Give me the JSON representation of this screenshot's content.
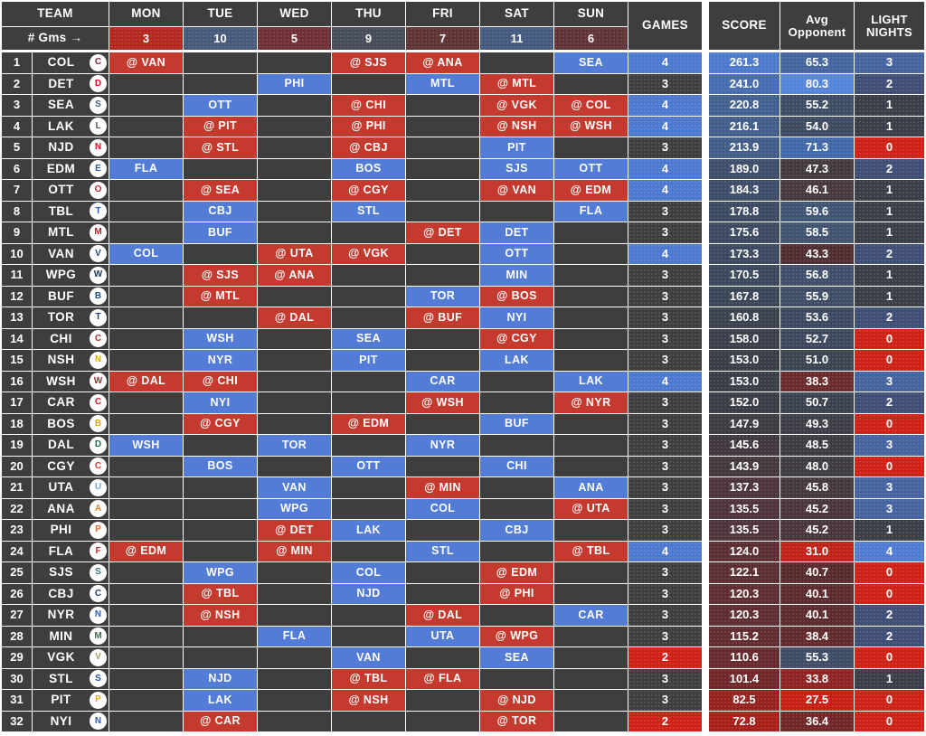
{
  "palette": {
    "empty": "#3E3E3E",
    "home": "#527CD5",
    "away": "#C43A2E",
    "games_colors": {
      "2": "#CE2217",
      "3": "#3E3E3E",
      "4": "#4C79CF"
    },
    "light_colors": {
      "0": "#CE2217",
      "1": "#3B3E46",
      "2": "#3F4E74",
      "3": "#45639E",
      "4": "#4F7CD2"
    }
  },
  "day_keys": [
    "mon",
    "tue",
    "wed",
    "thu",
    "fri",
    "sat",
    "sun"
  ],
  "header": {
    "team": "TEAM",
    "gms_label": "# Gms →",
    "days": [
      "MON",
      "TUE",
      "WED",
      "THU",
      "FRI",
      "SAT",
      "SUN"
    ],
    "counts": {
      "mon": {
        "label": "3",
        "color": "#B3271E"
      },
      "tue": {
        "label": "10",
        "color": "#47597B"
      },
      "wed": {
        "label": "5",
        "color": "#6E3036"
      },
      "thu": {
        "label": "9",
        "color": "#474C59"
      },
      "fri": {
        "label": "7",
        "color": "#5E3434"
      },
      "sat": {
        "label": "11",
        "color": "#44597E"
      },
      "sun": {
        "label": "6",
        "color": "#63333A"
      }
    },
    "games": "GAMES",
    "score": "SCORE",
    "avg_opponent": "Avg\nOpponent",
    "light_nights": "LIGHT\nNIGHTS"
  },
  "rows": [
    {
      "rank": 1,
      "abbr": "COL",
      "color": "#7A2B42",
      "days": {
        "mon": "@ VAN",
        "thu": "@ SJS",
        "fri": "@ ANA",
        "sun": "SEA"
      },
      "games": 4,
      "score": "261.3",
      "score_c": "#4B79CC",
      "avg": "65.3",
      "avg_c": "#44659E",
      "light": 3
    },
    {
      "rank": 2,
      "abbr": "DET",
      "color": "#CE1126",
      "days": {
        "wed": "PHI",
        "fri": "MTL",
        "sat": "@ MTL"
      },
      "games": 3,
      "score": "241.0",
      "score_c": "#476CB0",
      "avg": "80.3",
      "avg_c": "#5585DB",
      "light": 2
    },
    {
      "rank": 3,
      "abbr": "SEA",
      "color": "#3B5F6E",
      "days": {
        "tue": "OTT",
        "thu": "@ CHI",
        "sat": "@ VGK",
        "sun": "@ COL"
      },
      "games": 4,
      "score": "220.8",
      "score_c": "#42608F",
      "avg": "55.2",
      "avg_c": "#3E4C63",
      "light": 1
    },
    {
      "rank": 4,
      "abbr": "LAK",
      "color": "#5A5A5A",
      "days": {
        "tue": "@ PIT",
        "thu": "@ PHI",
        "sat": "@ NSH",
        "sun": "@ WSH"
      },
      "games": 4,
      "score": "216.1",
      "score_c": "#415D8A",
      "avg": "54.0",
      "avg_c": "#3E4A60",
      "light": 1
    },
    {
      "rank": 5,
      "abbr": "NJD",
      "color": "#CE1126",
      "days": {
        "tue": "@ STL",
        "thu": "@ CBJ",
        "sat": "PIT"
      },
      "games": 3,
      "score": "213.9",
      "score_c": "#405C87",
      "avg": "71.3",
      "avg_c": "#4368A8",
      "light": 0
    },
    {
      "rank": 6,
      "abbr": "EDM",
      "color": "#2B5AA8",
      "days": {
        "mon": "FLA",
        "thu": "BOS",
        "sat": "SJS",
        "sun": "OTT"
      },
      "games": 4,
      "score": "189.0",
      "score_c": "#3D4D6A",
      "avg": "47.3",
      "avg_c": "#433A3E",
      "light": 2
    },
    {
      "rank": 7,
      "abbr": "OTT",
      "color": "#C52032",
      "days": {
        "tue": "@ SEA",
        "thu": "@ CGY",
        "sat": "@ VAN",
        "sun": "@ EDM"
      },
      "games": 4,
      "score": "184.3",
      "score_c": "#3D4C67",
      "avg": "46.1",
      "avg_c": "#47393C",
      "light": 1
    },
    {
      "rank": 8,
      "abbr": "TBL",
      "color": "#1D5FC2",
      "days": {
        "tue": "CBJ",
        "thu": "STL",
        "sun": "FLA"
      },
      "games": 3,
      "score": "178.8",
      "score_c": "#3C4A64",
      "avg": "59.6",
      "avg_c": "#405573",
      "light": 1
    },
    {
      "rank": 9,
      "abbr": "MTL",
      "color": "#AF1E2D",
      "days": {
        "tue": "BUF",
        "fri": "@ DET",
        "sat": "DET"
      },
      "games": 3,
      "score": "175.6",
      "score_c": "#3C4961",
      "avg": "58.5",
      "avg_c": "#405371",
      "light": 1
    },
    {
      "rank": 10,
      "abbr": "VAN",
      "color": "#1E4482",
      "days": {
        "mon": "COL",
        "wed": "@ UTA",
        "thu": "@ VGK",
        "sat": "OTT"
      },
      "games": 4,
      "score": "173.3",
      "score_c": "#3C485F",
      "avg": "43.3",
      "avg_c": "#502F33",
      "light": 2
    },
    {
      "rank": 11,
      "abbr": "WPG",
      "color": "#16325C",
      "days": {
        "tue": "@ SJS",
        "wed": "@ ANA",
        "sat": "MIN"
      },
      "games": 3,
      "score": "170.5",
      "score_c": "#3B475D",
      "avg": "56.8",
      "avg_c": "#3F4F6A",
      "light": 1
    },
    {
      "rank": 12,
      "abbr": "BUF",
      "color": "#1D4F91",
      "days": {
        "tue": "@ MTL",
        "fri": "TOR",
        "sat": "@ BOS"
      },
      "games": 3,
      "score": "167.8",
      "score_c": "#3B4558",
      "avg": "55.9",
      "avg_c": "#3F4D67",
      "light": 1
    },
    {
      "rank": 13,
      "abbr": "TOR",
      "color": "#1A3E7E",
      "days": {
        "wed": "@ DAL",
        "fri": "@ BUF",
        "sat": "NYI"
      },
      "games": 3,
      "score": "160.8",
      "score_c": "#3A414F",
      "avg": "53.6",
      "avg_c": "#3D4960",
      "light": 2
    },
    {
      "rank": 14,
      "abbr": "CHI",
      "color": "#A6342C",
      "days": {
        "tue": "WSH",
        "thu": "SEA",
        "sat": "@ CGY"
      },
      "games": 3,
      "score": "158.0",
      "score_c": "#3A3F4B",
      "avg": "52.7",
      "avg_c": "#3D475D",
      "light": 0
    },
    {
      "rank": 15,
      "abbr": "NSH",
      "color": "#E3A321",
      "days": {
        "tue": "NYR",
        "thu": "PIT",
        "sat": "LAK"
      },
      "games": 3,
      "score": "153.0",
      "score_c": "#393D47",
      "avg": "51.0",
      "avg_c": "#3C4452",
      "light": 0
    },
    {
      "rank": 16,
      "abbr": "WSH",
      "color": "#B02A30",
      "days": {
        "mon": "@ DAL",
        "tue": "@ CHI",
        "fri": "CAR",
        "sun": "LAK"
      },
      "games": 4,
      "score": "153.0",
      "score_c": "#393D47",
      "avg": "38.3",
      "avg_c": "#6B2A2B",
      "light": 3
    },
    {
      "rank": 17,
      "abbr": "CAR",
      "color": "#CC1F2F",
      "days": {
        "tue": "NYI",
        "fri": "@ WSH",
        "sun": "@ NYR"
      },
      "games": 3,
      "score": "152.0",
      "score_c": "#393C45",
      "avg": "50.7",
      "avg_c": "#3C424E",
      "light": 2
    },
    {
      "rank": 18,
      "abbr": "BOS",
      "color": "#D9A520",
      "days": {
        "tue": "@ CGY",
        "thu": "@ EDM",
        "sat": "BUF"
      },
      "games": 3,
      "score": "147.9",
      "score_c": "#3E3A41",
      "avg": "49.3",
      "avg_c": "#3D3E46",
      "light": 0
    },
    {
      "rank": 19,
      "abbr": "DAL",
      "color": "#1B6E4C",
      "days": {
        "mon": "WSH",
        "wed": "TOR",
        "fri": "NYR"
      },
      "games": 3,
      "score": "145.6",
      "score_c": "#41383F",
      "avg": "48.5",
      "avg_c": "#3E3C43",
      "light": 3
    },
    {
      "rank": 20,
      "abbr": "CGY",
      "color": "#D23A2F",
      "days": {
        "tue": "BOS",
        "thu": "OTT",
        "sat": "CHI"
      },
      "games": 3,
      "score": "143.9",
      "score_c": "#44373E",
      "avg": "48.0",
      "avg_c": "#3F3B42",
      "light": 0
    },
    {
      "rank": 21,
      "abbr": "UTA",
      "color": "#6FA8DC",
      "days": {
        "wed": "VAN",
        "fri": "@ MIN",
        "sun": "ANA"
      },
      "games": 3,
      "score": "137.3",
      "score_c": "#4C343A",
      "avg": "45.8",
      "avg_c": "#45383E",
      "light": 3
    },
    {
      "rank": 22,
      "abbr": "ANA",
      "color": "#E8842C",
      "days": {
        "wed": "WPG",
        "fri": "COL",
        "sun": "@ UTA"
      },
      "games": 3,
      "score": "135.5",
      "score_c": "#4E333A",
      "avg": "45.2",
      "avg_c": "#48363C",
      "light": 3
    },
    {
      "rank": 23,
      "abbr": "PHI",
      "color": "#E8692C",
      "days": {
        "wed": "@ DET",
        "thu": "LAK",
        "sat": "CBJ"
      },
      "games": 3,
      "score": "135.5",
      "score_c": "#4E333A",
      "avg": "45.2",
      "avg_c": "#48363C",
      "light": 1
    },
    {
      "rank": 24,
      "abbr": "FLA",
      "color": "#B4332F",
      "days": {
        "mon": "@ EDM",
        "wed": "@ MIN",
        "fri": "STL",
        "sun": "@ TBL"
      },
      "games": 4,
      "score": "124.0",
      "score_c": "#5A2E33",
      "avg": "31.0",
      "avg_c": "#C02318",
      "light": 4
    },
    {
      "rank": 25,
      "abbr": "SJS",
      "color": "#2E7D86",
      "days": {
        "tue": "WPG",
        "thu": "COL",
        "sat": "@ EDM"
      },
      "games": 3,
      "score": "122.1",
      "score_c": "#5C2D32",
      "avg": "40.7",
      "avg_c": "#5A2B2E",
      "light": 0
    },
    {
      "rank": 26,
      "abbr": "CBJ",
      "color": "#20416E",
      "days": {
        "tue": "@ TBL",
        "thu": "NJD",
        "sat": "@ PHI"
      },
      "games": 3,
      "score": "120.3",
      "score_c": "#5E2C31",
      "avg": "40.1",
      "avg_c": "#5C2A2E",
      "light": 0
    },
    {
      "rank": 27,
      "abbr": "NYR",
      "color": "#2F5FBF",
      "days": {
        "tue": "@ NSH",
        "fri": "@ DAL",
        "sun": "CAR"
      },
      "games": 3,
      "score": "120.3",
      "score_c": "#5E2C31",
      "avg": "40.1",
      "avg_c": "#5C2A2E",
      "light": 2
    },
    {
      "rank": 28,
      "abbr": "MIN",
      "color": "#3E6B4F",
      "days": {
        "wed": "FLA",
        "fri": "UTA",
        "sat": "@ WPG"
      },
      "games": 3,
      "score": "115.2",
      "score_c": "#622B30",
      "avg": "38.4",
      "avg_c": "#622A2C",
      "light": 2
    },
    {
      "rank": 29,
      "abbr": "VGK",
      "color": "#A8986B",
      "days": {
        "thu": "VAN",
        "sat": "SEA"
      },
      "games": 2,
      "score": "110.6",
      "score_c": "#662A2E",
      "avg": "55.3",
      "avg_c": "#3E4C66",
      "light": 0
    },
    {
      "rank": 30,
      "abbr": "STL",
      "color": "#2053A4",
      "days": {
        "tue": "NJD",
        "thu": "@ TBL",
        "fri": "@ FLA"
      },
      "games": 3,
      "score": "101.4",
      "score_c": "#71272A",
      "avg": "33.8",
      "avg_c": "#8D2322",
      "light": 1
    },
    {
      "rank": 31,
      "abbr": "PIT",
      "color": "#D8A930",
      "days": {
        "tue": "LAK",
        "thu": "@ NSH",
        "sat": "@ NJD"
      },
      "games": 3,
      "score": "82.5",
      "score_c": "#95221E",
      "avg": "27.5",
      "avg_c": "#C81F13",
      "light": 0
    },
    {
      "rank": 32,
      "abbr": "NYI",
      "color": "#2B5DA8",
      "days": {
        "tue": "@ CAR",
        "sat": "@ TOR"
      },
      "games": 2,
      "score": "72.8",
      "score_c": "#A61F19",
      "avg": "36.4",
      "avg_c": "#6F2629",
      "light": 0
    }
  ],
  "chart_data": {
    "type": "table",
    "title": "NHL weekly schedule grid with games, score and opponent strength heatmap",
    "columns": [
      "#",
      "TEAM",
      "MON",
      "TUE",
      "WED",
      "THU",
      "FRI",
      "SAT",
      "SUN",
      "GAMES",
      "SCORE",
      "Avg Opponent",
      "LIGHT NIGHTS"
    ],
    "games_per_day": {
      "MON": 3,
      "TUE": 10,
      "WED": 5,
      "THU": 9,
      "FRI": 7,
      "SAT": 11,
      "SUN": 6
    },
    "rows": [
      [
        1,
        "COL",
        "@ VAN",
        "",
        "",
        "@ SJS",
        "@ ANA",
        "",
        "SEA",
        4,
        261.3,
        65.3,
        3
      ],
      [
        2,
        "DET",
        "",
        "",
        "PHI",
        "",
        "MTL",
        "@ MTL",
        "",
        3,
        241.0,
        80.3,
        2
      ],
      [
        3,
        "SEA",
        "",
        "OTT",
        "",
        "@ CHI",
        "",
        "@ VGK",
        "@ COL",
        4,
        220.8,
        55.2,
        1
      ],
      [
        4,
        "LAK",
        "",
        "@ PIT",
        "",
        "@ PHI",
        "",
        "@ NSH",
        "@ WSH",
        4,
        216.1,
        54.0,
        1
      ],
      [
        5,
        "NJD",
        "",
        "@ STL",
        "",
        "@ CBJ",
        "",
        "PIT",
        "",
        3,
        213.9,
        71.3,
        0
      ],
      [
        6,
        "EDM",
        "FLA",
        "",
        "",
        "BOS",
        "",
        "SJS",
        "OTT",
        4,
        189.0,
        47.3,
        2
      ],
      [
        7,
        "OTT",
        "",
        "@ SEA",
        "",
        "@ CGY",
        "",
        "@ VAN",
        "@ EDM",
        4,
        184.3,
        46.1,
        1
      ],
      [
        8,
        "TBL",
        "",
        "CBJ",
        "",
        "STL",
        "",
        "",
        "FLA",
        3,
        178.8,
        59.6,
        1
      ],
      [
        9,
        "MTL",
        "",
        "BUF",
        "",
        "",
        "@ DET",
        "DET",
        "",
        3,
        175.6,
        58.5,
        1
      ],
      [
        10,
        "VAN",
        "COL",
        "",
        "@ UTA",
        "@ VGK",
        "",
        "OTT",
        "",
        4,
        173.3,
        43.3,
        2
      ],
      [
        11,
        "WPG",
        "",
        "@ SJS",
        "@ ANA",
        "",
        "",
        "MIN",
        "",
        3,
        170.5,
        56.8,
        1
      ],
      [
        12,
        "BUF",
        "",
        "@ MTL",
        "",
        "",
        "TOR",
        "@ BOS",
        "",
        3,
        167.8,
        55.9,
        1
      ],
      [
        13,
        "TOR",
        "",
        "",
        "@ DAL",
        "",
        "@ BUF",
        "NYI",
        "",
        3,
        160.8,
        53.6,
        2
      ],
      [
        14,
        "CHI",
        "",
        "WSH",
        "",
        "SEA",
        "",
        "@ CGY",
        "",
        3,
        158.0,
        52.7,
        0
      ],
      [
        15,
        "NSH",
        "",
        "NYR",
        "",
        "PIT",
        "",
        "LAK",
        "",
        3,
        153.0,
        51.0,
        0
      ],
      [
        16,
        "WSH",
        "@ DAL",
        "@ CHI",
        "",
        "",
        "CAR",
        "",
        "LAK",
        4,
        153.0,
        38.3,
        3
      ],
      [
        17,
        "CAR",
        "",
        "NYI",
        "",
        "",
        "@ WSH",
        "",
        "@ NYR",
        3,
        152.0,
        50.7,
        2
      ],
      [
        18,
        "BOS",
        "",
        "@ CGY",
        "",
        "@ EDM",
        "",
        "BUF",
        "",
        3,
        147.9,
        49.3,
        0
      ],
      [
        19,
        "DAL",
        "WSH",
        "",
        "TOR",
        "",
        "NYR",
        "",
        "",
        3,
        145.6,
        48.5,
        3
      ],
      [
        20,
        "CGY",
        "",
        "BOS",
        "",
        "OTT",
        "",
        "CHI",
        "",
        3,
        143.9,
        48.0,
        0
      ],
      [
        21,
        "UTA",
        "",
        "",
        "VAN",
        "",
        "@ MIN",
        "",
        "ANA",
        3,
        137.3,
        45.8,
        3
      ],
      [
        22,
        "ANA",
        "",
        "",
        "WPG",
        "",
        "COL",
        "",
        "@ UTA",
        3,
        135.5,
        45.2,
        3
      ],
      [
        23,
        "PHI",
        "",
        "",
        "@ DET",
        "LAK",
        "",
        "CBJ",
        "",
        3,
        135.5,
        45.2,
        1
      ],
      [
        24,
        "FLA",
        "@ EDM",
        "",
        "@ MIN",
        "",
        "STL",
        "",
        "@ TBL",
        4,
        124.0,
        31.0,
        4
      ],
      [
        25,
        "SJS",
        "",
        "WPG",
        "",
        "COL",
        "",
        "@ EDM",
        "",
        3,
        122.1,
        40.7,
        0
      ],
      [
        26,
        "CBJ",
        "",
        "@ TBL",
        "",
        "NJD",
        "",
        "@ PHI",
        "",
        3,
        120.3,
        40.1,
        0
      ],
      [
        27,
        "NYR",
        "",
        "@ NSH",
        "",
        "",
        "@ DAL",
        "",
        "CAR",
        3,
        120.3,
        40.1,
        2
      ],
      [
        28,
        "MIN",
        "",
        "",
        "FLA",
        "",
        "UTA",
        "@ WPG",
        "",
        3,
        115.2,
        38.4,
        2
      ],
      [
        29,
        "VGK",
        "",
        "",
        "",
        "VAN",
        "",
        "SEA",
        "",
        2,
        110.6,
        55.3,
        0
      ],
      [
        30,
        "STL",
        "",
        "NJD",
        "",
        "@ TBL",
        "@ FLA",
        "",
        "",
        3,
        101.4,
        33.8,
        1
      ],
      [
        31,
        "PIT",
        "",
        "LAK",
        "",
        "@ NSH",
        "",
        "@ NJD",
        "",
        3,
        82.5,
        27.5,
        0
      ],
      [
        32,
        "NYI",
        "",
        "@ CAR",
        "",
        "",
        "",
        "@ TOR",
        "",
        2,
        72.8,
        36.4,
        0
      ]
    ]
  }
}
